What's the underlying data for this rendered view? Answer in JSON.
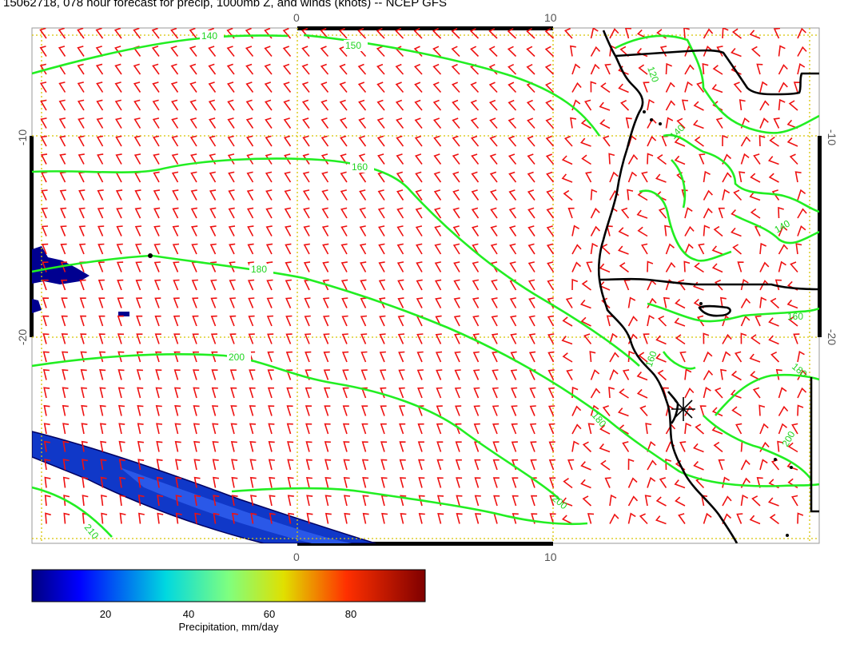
{
  "title": "15062718, 078 hour forecast for precip, 1000mb Z, and winds (knots) -- NCEP GFS",
  "axes": {
    "x_ticks": [
      "0",
      "10"
    ],
    "y_ticks": [
      "-10",
      "-20"
    ]
  },
  "contours": {
    "color": "#22ee22",
    "labels": [
      "140",
      "150",
      "160",
      "180",
      "200",
      "210",
      "120",
      "140",
      "140",
      "160",
      "180",
      "200",
      "160",
      "180",
      "200"
    ]
  },
  "wind_barbs": {
    "color": "#ee1111"
  },
  "colorbar": {
    "label": "Precipitation, mm/day",
    "ticks": [
      "20",
      "40",
      "60",
      "80"
    ],
    "range": [
      0,
      100
    ]
  },
  "colors": {
    "precip_low": "#000090",
    "precip_mid": "#1038c8",
    "coast": "#000000",
    "grid": "#d8c400"
  }
}
